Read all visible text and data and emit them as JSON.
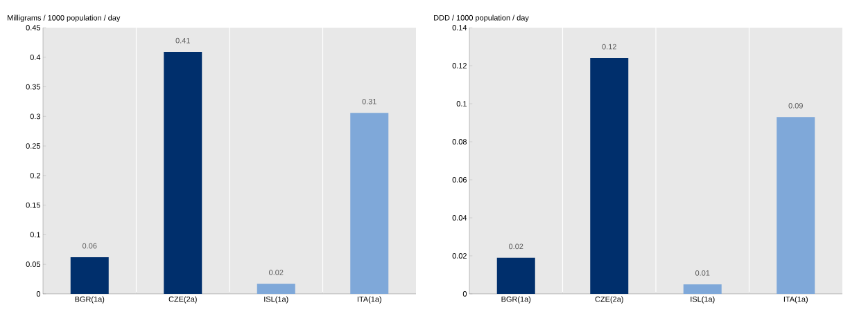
{
  "chart_data": [
    {
      "type": "bar",
      "ylabel": "Milligrams / 1000 population / day",
      "categories": [
        "BGR(1a)",
        "CZE(2a)",
        "ISL(1a)",
        "ITA(1a)"
      ],
      "values": [
        0.062,
        0.409,
        0.017,
        0.306
      ],
      "colors": [
        "#002f6c",
        "#002f6c",
        "#7fa8d9",
        "#7fa8d9"
      ],
      "value_labels": [
        "0.06",
        "0.41",
        "0.02",
        "0.31"
      ],
      "ylim": [
        0,
        0.45
      ],
      "yticks": [
        0,
        0.05,
        0.1,
        0.15,
        0.2,
        0.25,
        0.3,
        0.35,
        0.4,
        0.45
      ],
      "grid": "x"
    },
    {
      "type": "bar",
      "ylabel": "DDD / 1000 population / day",
      "categories": [
        "BGR(1a)",
        "CZE(2a)",
        "ISL(1a)",
        "ITA(1a)"
      ],
      "values": [
        0.019,
        0.124,
        0.005,
        0.093
      ],
      "colors": [
        "#002f6c",
        "#002f6c",
        "#7fa8d9",
        "#7fa8d9"
      ],
      "value_labels": [
        "0.02",
        "0.12",
        "0.01",
        "0.09"
      ],
      "ylim": [
        0,
        0.14
      ],
      "yticks": [
        0,
        0.02,
        0.04,
        0.06,
        0.08,
        0.1,
        0.12,
        0.14
      ],
      "grid": "x"
    }
  ]
}
